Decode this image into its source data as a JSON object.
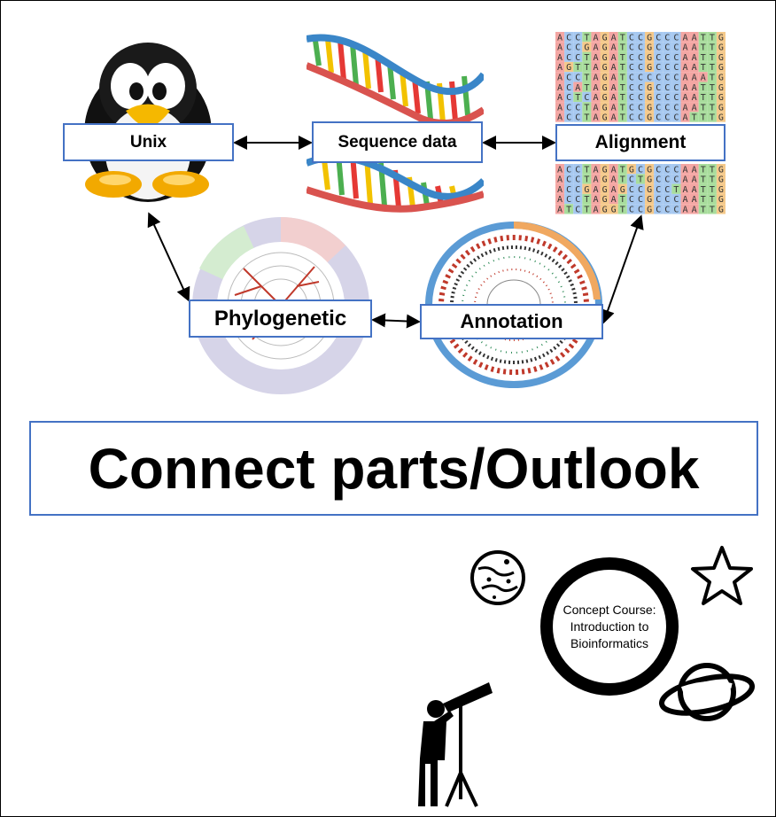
{
  "boxes": {
    "unix": "Unix",
    "sequence": "Sequence data",
    "alignment": "Alignment",
    "phylogenetic": "Phylogenetic",
    "annotation": "Annotation"
  },
  "title": "Connect parts/Outlook",
  "course": {
    "line1": "Concept Course:",
    "line2": "Introduction to",
    "line3": "Bioinformatics"
  },
  "alignment_rows_top": [
    "ACCTAGATCCGCCCAATTG",
    "ACCGAGATCCGCCCAATTG",
    "ACCTAGATCCGCCCAATTG",
    "AGTTAGATCCGCCCAATTG",
    "ACCTAGATCCCCCCAAATG",
    "ACATAGATCCGCCCAATTG",
    "ACTCAGATCCGCCCAATTG",
    "ACCTAGATCCGCCCAATTG",
    "ACCTAGATCCGCCCATTTG"
  ],
  "alignment_rows_bottom": [
    "ACCTAGATGCGCCCAATTG",
    "ACCTAGATCTGCCCAATTG",
    "ACCGAGAGCCGCCTAATTG",
    "ACCTAGATCCGCCCAATTG",
    "ATCTAGGTCCGCCCAATTG"
  ],
  "colors": {
    "box_border": "#4472c4",
    "A": "#f4a6a3",
    "C": "#a6c8f0",
    "G": "#f5c98a",
    "T": "#a8dd9c"
  },
  "icons": [
    "penguin-icon",
    "dna-helix-icon",
    "phylogenetic-tree-icon",
    "genome-map-icon",
    "moon-icon",
    "star-icon",
    "planet-icon",
    "astronomer-telescope-icon"
  ]
}
